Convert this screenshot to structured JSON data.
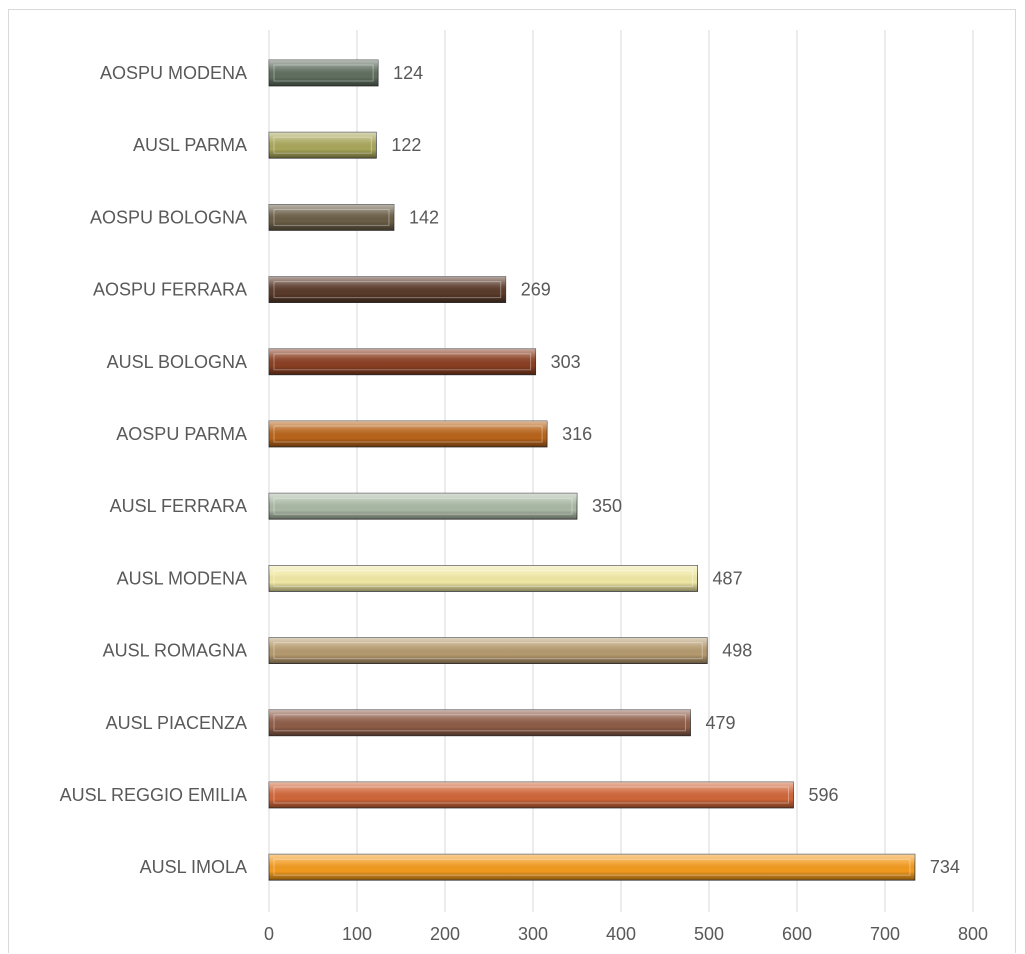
{
  "chart_data": {
    "type": "bar",
    "orientation": "horizontal",
    "categories": [
      "AOSPU MODENA",
      "AUSL PARMA",
      "AOSPU BOLOGNA",
      "AOSPU FERRARA",
      "AUSL BOLOGNA",
      "AOSPU PARMA",
      "AUSL FERRARA",
      "AUSL MODENA",
      "AUSL ROMAGNA",
      "AUSL PIACENZA",
      "AUSL REGGIO EMILIA",
      "AUSL IMOLA"
    ],
    "values": [
      124,
      122,
      142,
      269,
      303,
      316,
      350,
      487,
      498,
      479,
      596,
      734
    ],
    "data_labels": [
      "124",
      "122",
      "142",
      "269",
      "303",
      "316",
      "350",
      "487",
      "498",
      "479",
      "596",
      "734"
    ],
    "bar_colors": [
      "#5f6e5f",
      "#a8a65a",
      "#6b5e47",
      "#5a3a2a",
      "#8a3f22",
      "#b8641a",
      "#a9b8a4",
      "#efe8a4",
      "#b59a6e",
      "#8e5d48",
      "#d0663a",
      "#f29a1e"
    ],
    "xlim": [
      0,
      800
    ],
    "x_ticks": [
      "0",
      "100",
      "200",
      "300",
      "400",
      "500",
      "600",
      "700",
      "800"
    ],
    "grid": "vertical",
    "legend": "none",
    "title": "",
    "xlabel": "",
    "ylabel": ""
  }
}
